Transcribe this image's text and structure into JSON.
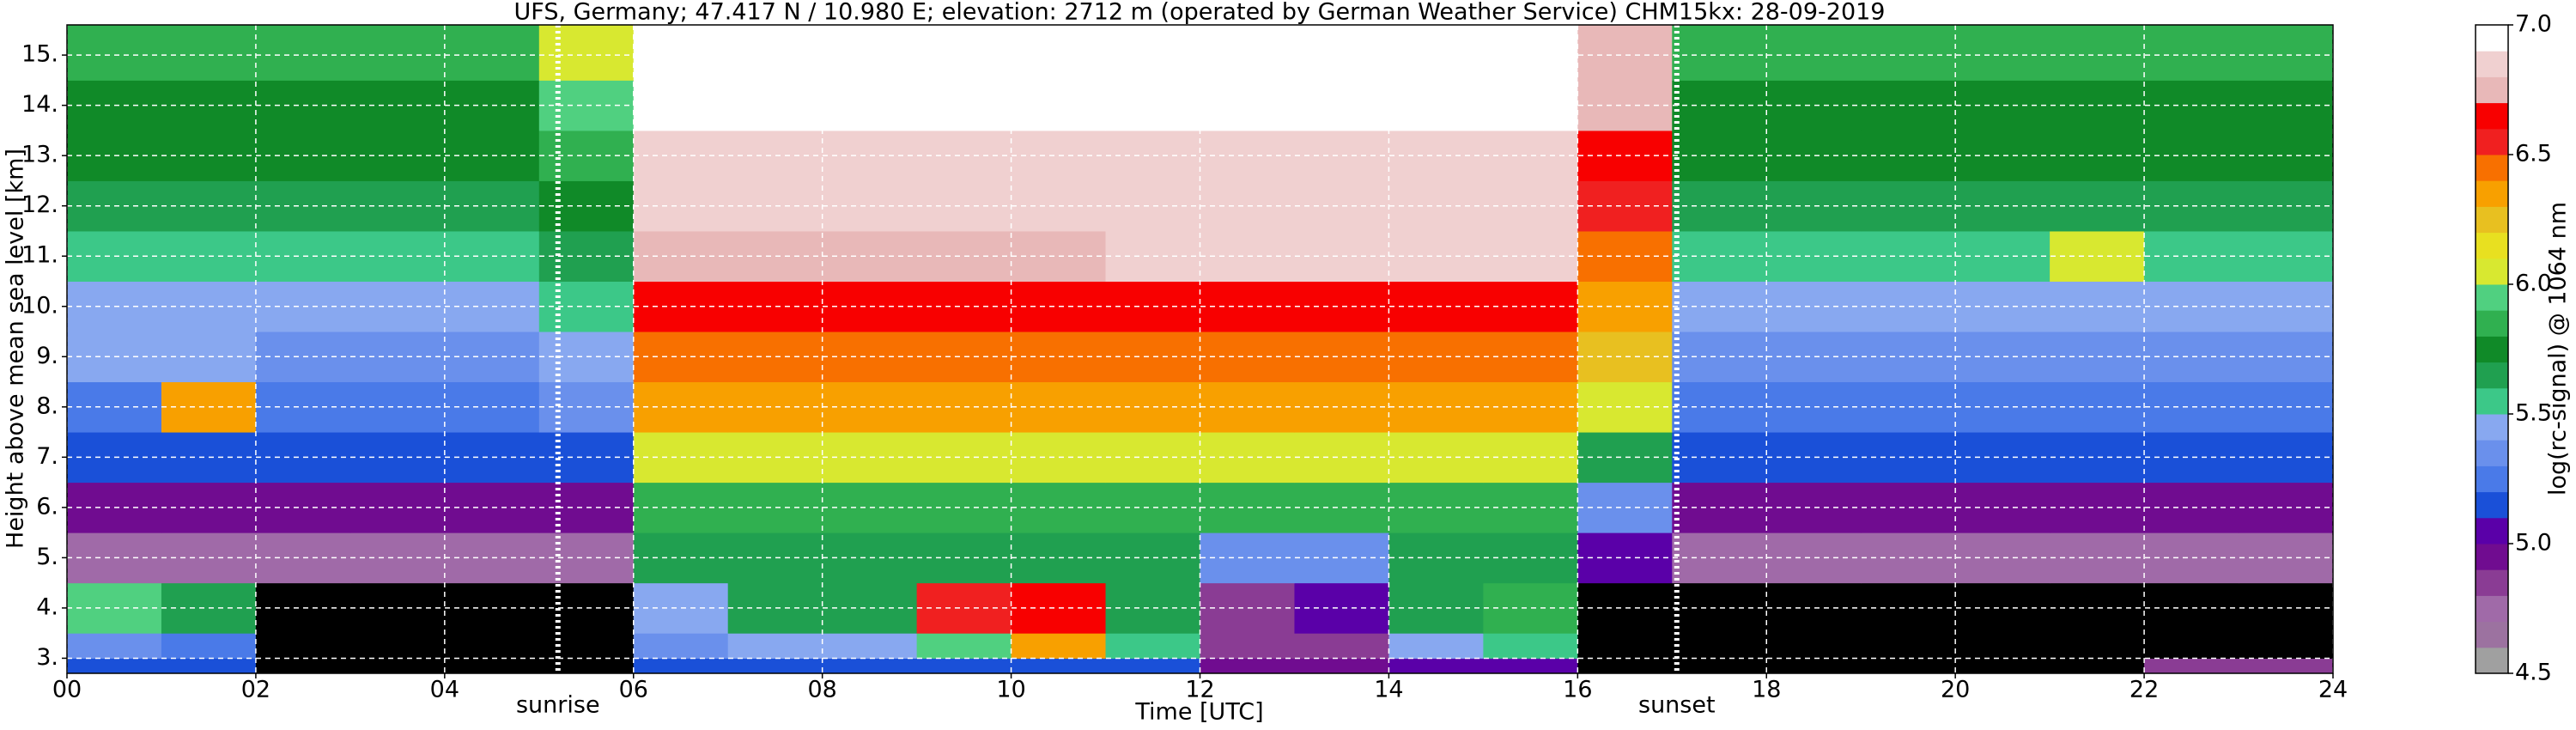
{
  "chart_data": {
    "type": "heatmap",
    "title": "UFS, Germany; 47.417 N / 10.980 E; elevation: 2712 m  (operated by German Weather Service)    CHM15kx: 28-09-2019",
    "x_label": "Time [UTC]",
    "y_label": "Height above mean sea level [km]",
    "xlim": [
      0,
      24
    ],
    "ylim": [
      2.7,
      15.6
    ],
    "xticks": [
      {
        "value": 0,
        "label": "00"
      },
      {
        "value": 2,
        "label": "02"
      },
      {
        "value": 4,
        "label": "04"
      },
      {
        "value": 6,
        "label": "06"
      },
      {
        "value": 8,
        "label": "08"
      },
      10,
      12,
      14,
      16,
      18,
      20,
      22,
      24
    ],
    "yticks": [
      {
        "value": 3,
        "label": "3."
      },
      {
        "value": 4,
        "label": "4."
      },
      {
        "value": 5,
        "label": "5."
      },
      {
        "value": 6,
        "label": "6."
      },
      {
        "value": 7,
        "label": "7."
      },
      {
        "value": 8,
        "label": "8."
      },
      {
        "value": 9,
        "label": "9."
      },
      {
        "value": 10,
        "label": "10."
      },
      {
        "value": 11,
        "label": "11."
      },
      {
        "value": 12,
        "label": "12."
      },
      {
        "value": 13,
        "label": "13."
      },
      {
        "value": 14,
        "label": "14."
      },
      {
        "value": 15,
        "label": "15."
      }
    ],
    "grid": true,
    "grid_color": "#ffffff",
    "background_color": "#000000",
    "x": [
      0,
      1,
      2,
      3,
      4,
      5,
      6,
      7,
      8,
      9,
      10,
      11,
      12,
      13,
      14,
      15,
      16,
      17,
      18,
      19,
      20,
      21,
      22,
      23,
      24
    ],
    "y": [
      2.7,
      3.0,
      3.5,
      4.5,
      5.5,
      6.5,
      7.5,
      8.5,
      9.5,
      10.5,
      11.5,
      12.5,
      13.5,
      14.5,
      15.6
    ],
    "z": [
      [
        5.1,
        5.1,
        4.3,
        4.3,
        4.3,
        4.3,
        5.1,
        5.1,
        5.1,
        5.1,
        5.1,
        5.1,
        4.9,
        4.9,
        5.0,
        5.0,
        4.3,
        4.3,
        4.3,
        4.3,
        4.3,
        4.3,
        4.8,
        4.8
      ],
      [
        5.3,
        5.2,
        4.3,
        4.3,
        4.3,
        4.3,
        5.3,
        5.4,
        5.4,
        5.9,
        6.3,
        5.5,
        4.8,
        4.8,
        5.4,
        5.5,
        4.3,
        4.3,
        4.3,
        4.3,
        4.3,
        4.3,
        4.3,
        4.3
      ],
      [
        5.9,
        5.6,
        4.3,
        4.3,
        4.3,
        4.3,
        5.4,
        5.6,
        5.6,
        6.5,
        6.6,
        5.6,
        4.8,
        5.0,
        5.6,
        5.8,
        4.3,
        4.3,
        4.3,
        4.3,
        4.3,
        4.3,
        4.3,
        4.3
      ],
      [
        4.7,
        4.7,
        4.7,
        4.7,
        4.7,
        4.7,
        5.6,
        5.6,
        5.6,
        5.6,
        5.6,
        5.6,
        5.3,
        5.3,
        5.6,
        5.6,
        5.0,
        4.7,
        4.7,
        4.7,
        4.7,
        4.7,
        4.7,
        4.7
      ],
      [
        4.9,
        4.9,
        4.9,
        4.9,
        4.9,
        4.9,
        5.8,
        5.8,
        5.8,
        5.8,
        5.8,
        5.8,
        5.8,
        5.8,
        5.8,
        5.8,
        5.3,
        4.9,
        4.9,
        4.9,
        4.9,
        4.9,
        4.9,
        4.9
      ],
      [
        5.1,
        5.1,
        5.1,
        5.1,
        5.1,
        5.1,
        6.0,
        6.0,
        6.0,
        6.0,
        6.0,
        6.0,
        6.0,
        6.0,
        6.0,
        6.0,
        5.6,
        5.1,
        5.1,
        5.1,
        5.1,
        5.1,
        5.1,
        5.1
      ],
      [
        5.2,
        6.3,
        5.2,
        5.2,
        5.2,
        5.3,
        6.3,
        6.3,
        6.3,
        6.3,
        6.3,
        6.3,
        6.3,
        6.3,
        6.3,
        6.3,
        6.0,
        5.2,
        5.2,
        5.2,
        5.2,
        5.2,
        5.2,
        5.2
      ],
      [
        5.4,
        5.4,
        5.3,
        5.3,
        5.3,
        5.4,
        6.4,
        6.4,
        6.4,
        6.4,
        6.4,
        6.4,
        6.4,
        6.4,
        6.4,
        6.4,
        6.2,
        5.3,
        5.3,
        5.3,
        5.3,
        5.3,
        5.3,
        5.3
      ],
      [
        5.4,
        5.4,
        5.4,
        5.4,
        5.4,
        5.5,
        6.6,
        6.6,
        6.6,
        6.6,
        6.6,
        6.6,
        6.6,
        6.6,
        6.6,
        6.6,
        6.3,
        5.4,
        5.4,
        5.4,
        5.4,
        5.4,
        5.4,
        5.4
      ],
      [
        5.5,
        5.5,
        5.5,
        5.5,
        5.5,
        5.6,
        6.7,
        6.7,
        6.7,
        6.7,
        6.7,
        6.8,
        6.8,
        6.8,
        6.8,
        6.8,
        6.4,
        5.5,
        5.5,
        5.5,
        5.5,
        6.0,
        5.5,
        5.5
      ],
      [
        5.6,
        5.6,
        5.6,
        5.6,
        5.6,
        5.7,
        6.8,
        6.8,
        6.8,
        6.8,
        6.8,
        6.8,
        6.8,
        6.8,
        6.8,
        6.8,
        6.5,
        5.6,
        5.6,
        5.6,
        5.6,
        5.6,
        5.6,
        5.6
      ],
      [
        5.7,
        5.7,
        5.7,
        5.7,
        5.7,
        5.8,
        6.8,
        6.8,
        6.8,
        6.8,
        6.8,
        6.8,
        6.8,
        6.8,
        6.8,
        6.8,
        6.6,
        5.7,
        5.7,
        5.7,
        5.7,
        5.7,
        5.7,
        5.7
      ],
      [
        5.7,
        5.7,
        5.7,
        5.7,
        5.7,
        5.9,
        6.9,
        6.9,
        6.9,
        6.9,
        6.9,
        6.9,
        6.9,
        6.9,
        6.9,
        6.9,
        6.7,
        5.7,
        5.7,
        5.7,
        5.7,
        5.7,
        5.7,
        5.7
      ],
      [
        5.8,
        5.8,
        5.8,
        5.8,
        5.8,
        6.0,
        6.9,
        6.9,
        6.9,
        6.9,
        6.9,
        6.9,
        6.9,
        6.9,
        6.9,
        6.9,
        6.7,
        5.8,
        5.8,
        5.8,
        5.8,
        5.8,
        5.8,
        5.8
      ]
    ],
    "annotations": [
      {
        "text": "sunrise",
        "x": 5.2
      },
      {
        "text": "sunset",
        "x": 17.05
      }
    ],
    "colorbar": {
      "label": "log(rc-signal) @ 1064 nm",
      "lim": [
        4.5,
        7.0
      ],
      "ticks": [
        4.5,
        {
          "value": 5,
          "label": "5.0"
        },
        5.5,
        {
          "value": 6,
          "label": "6.0"
        },
        6.5,
        {
          "value": 7,
          "label": "7.0"
        }
      ],
      "under_color": "#000000",
      "colors": [
        "#a0a0a0",
        "#9c72a0",
        "#a06aa8",
        "#8a3c94",
        "#700c90",
        "#5a00a8",
        "#1a50d8",
        "#4a7ae8",
        "#6a90ec",
        "#88a8f0",
        "#3cc888",
        "#20a050",
        "#108a28",
        "#30b050",
        "#50d080",
        "#d8e830",
        "#e8e020",
        "#e8c020",
        "#f8a000",
        "#f87000",
        "#f02020",
        "#f80000",
        "#e8b8b8",
        "#f0d0d0",
        "#ffffff"
      ]
    }
  }
}
